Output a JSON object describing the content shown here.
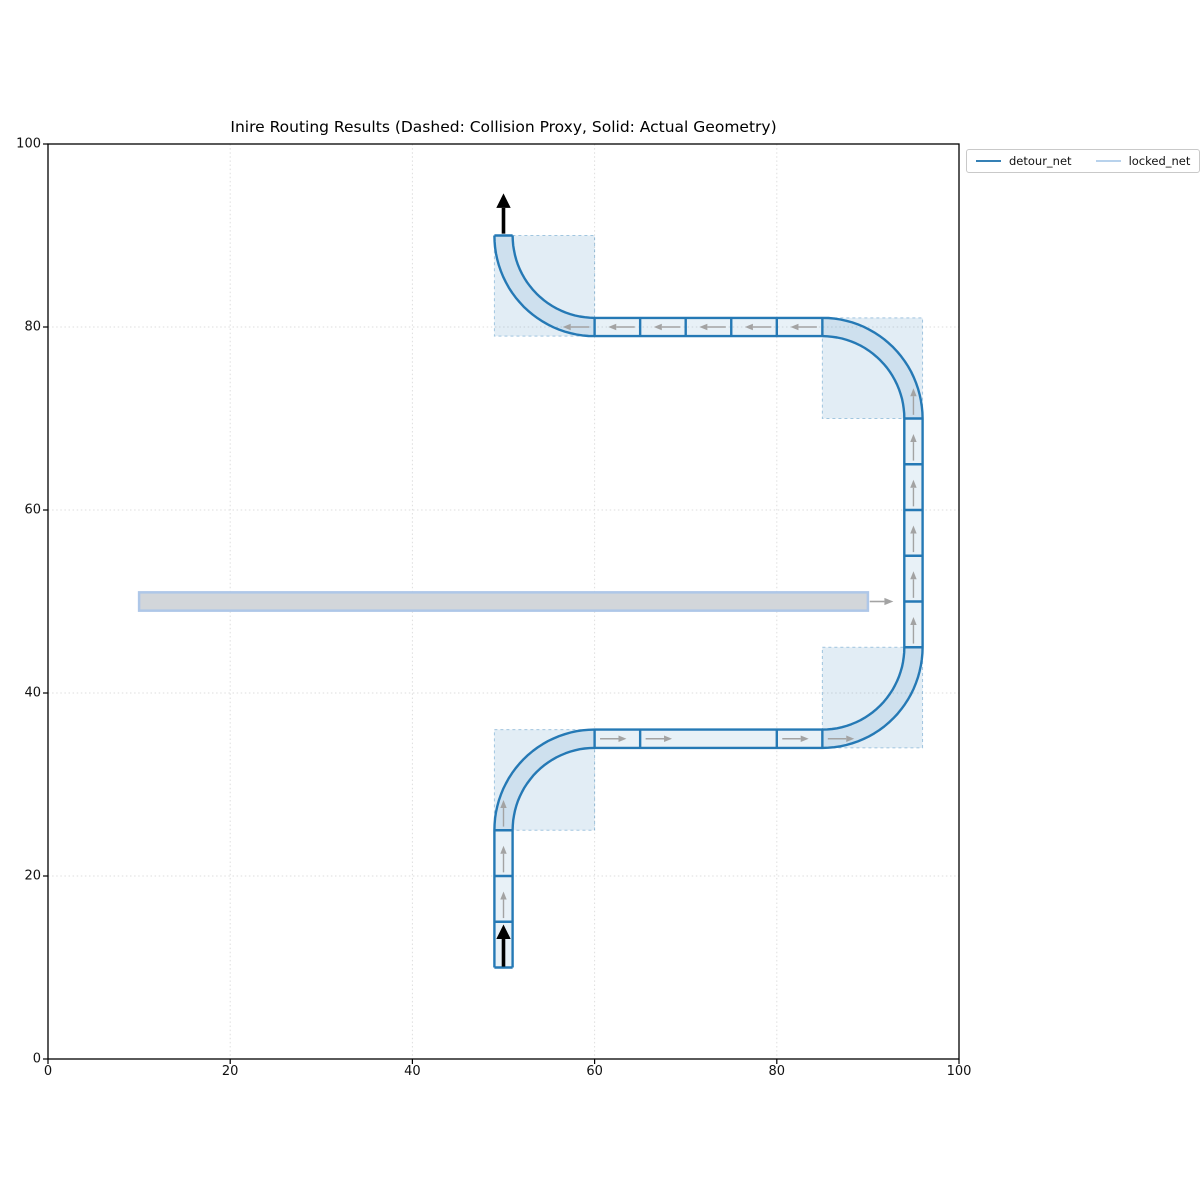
{
  "figure": {
    "title": "Inire Routing Results (Dashed: Collision Proxy, Solid: Actual Geometry)",
    "background": "#ffffff"
  },
  "chart_data": {
    "type": "line",
    "title": "Inire Routing Results (Dashed: Collision Proxy, Solid: Actual Geometry)",
    "xlabel": "",
    "ylabel": "",
    "xlim": [
      0,
      100
    ],
    "ylim": [
      0,
      100
    ],
    "xticks": [
      0,
      20,
      40,
      60,
      80,
      100
    ],
    "yticks": [
      0,
      20,
      40,
      60,
      80,
      100
    ],
    "grid": {
      "on": true,
      "style": "dotted",
      "color": "#dedede",
      "values": [
        20,
        40,
        60,
        80
      ]
    },
    "legend_position": "upper-right-outside",
    "colors": {
      "detour_stroke": "#2579b5",
      "detour_fill": "rgba(31,119,180,0.10)",
      "proxy_fill": "rgba(31,119,180,0.13)",
      "proxy_border": "rgba(31,119,180,0.38)",
      "locked_fill": "#d2d6da",
      "locked_border": "#aec7e8",
      "flow_arrow": "#a3a3a3",
      "terminal_arrow": "#000000",
      "spine": "#000000"
    },
    "series": [
      {
        "name": "detour_net",
        "legend_color": "#3580b5",
        "width_units": 2,
        "corner_radius": 10,
        "centerline_waypoints": [
          [
            50,
            10
          ],
          [
            50,
            35
          ],
          [
            95,
            35
          ],
          [
            95,
            80
          ],
          [
            50,
            80
          ],
          [
            50,
            90
          ]
        ],
        "edges": {
          "outer": [
            {
              "m": [
                49,
                10
              ]
            },
            {
              "l": [
                49,
                25
              ]
            },
            {
              "a": [
                60,
                25,
                11,
                180,
                90
              ]
            },
            {
              "l": [
                85,
                36
              ]
            },
            {
              "a": [
                85,
                45,
                9,
                270,
                360
              ]
            },
            {
              "l": [
                94,
                70
              ]
            },
            {
              "a": [
                85,
                70,
                9,
                0,
                90
              ]
            },
            {
              "l": [
                60,
                79
              ]
            },
            {
              "a": [
                60,
                90,
                11,
                270,
                180
              ]
            }
          ],
          "inner": [
            {
              "m": [
                51,
                10
              ]
            },
            {
              "l": [
                51,
                25
              ]
            },
            {
              "a": [
                60,
                25,
                9,
                180,
                90
              ]
            },
            {
              "l": [
                85,
                34
              ]
            },
            {
              "a": [
                85,
                45,
                11,
                270,
                360
              ]
            },
            {
              "l": [
                96,
                70
              ]
            },
            {
              "a": [
                85,
                70,
                11,
                0,
                90
              ]
            },
            {
              "l": [
                60,
                81
              ]
            },
            {
              "a": [
                60,
                90,
                9,
                270,
                180
              ]
            }
          ]
        },
        "end_caps": [
          [
            [
              49,
              10
            ],
            [
              51,
              10
            ]
          ],
          [
            [
              49,
              90
            ],
            [
              51,
              90
            ]
          ]
        ],
        "segment_ticks": [
          {
            "from": [
              49,
              15
            ],
            "to": [
              51,
              15
            ]
          },
          {
            "from": [
              49,
              20
            ],
            "to": [
              51,
              20
            ]
          },
          {
            "from": [
              49,
              25
            ],
            "to": [
              51,
              25
            ]
          },
          {
            "from": [
              60,
              34
            ],
            "to": [
              60,
              36
            ]
          },
          {
            "from": [
              65,
              34
            ],
            "to": [
              65,
              36
            ]
          },
          {
            "from": [
              80,
              34
            ],
            "to": [
              80,
              36
            ]
          },
          {
            "from": [
              85,
              34
            ],
            "to": [
              85,
              36
            ]
          },
          {
            "from": [
              94,
              45
            ],
            "to": [
              96,
              45
            ]
          },
          {
            "from": [
              94,
              50
            ],
            "to": [
              96,
              50
            ]
          },
          {
            "from": [
              94,
              55
            ],
            "to": [
              96,
              55
            ]
          },
          {
            "from": [
              94,
              60
            ],
            "to": [
              96,
              60
            ]
          },
          {
            "from": [
              94,
              65
            ],
            "to": [
              96,
              65
            ]
          },
          {
            "from": [
              94,
              70
            ],
            "to": [
              96,
              70
            ]
          },
          {
            "from": [
              60,
              79
            ],
            "to": [
              60,
              81
            ]
          },
          {
            "from": [
              65,
              79
            ],
            "to": [
              65,
              81
            ]
          },
          {
            "from": [
              70,
              79
            ],
            "to": [
              70,
              81
            ]
          },
          {
            "from": [
              75,
              79
            ],
            "to": [
              75,
              81
            ]
          },
          {
            "from": [
              80,
              79
            ],
            "to": [
              80,
              81
            ]
          },
          {
            "from": [
              85,
              79
            ],
            "to": [
              85,
              81
            ]
          }
        ],
        "flow_arrow_length": 2.9,
        "flow_arrows": [
          {
            "tail": [
              50,
              15.4
            ],
            "dir": [
              0,
              1
            ]
          },
          {
            "tail": [
              50,
              20.4
            ],
            "dir": [
              0,
              1
            ]
          },
          {
            "tail": [
              50,
              25.4
            ],
            "dir": [
              0,
              1
            ]
          },
          {
            "tail": [
              60.6,
              35
            ],
            "dir": [
              1,
              0
            ]
          },
          {
            "tail": [
              65.6,
              35
            ],
            "dir": [
              1,
              0
            ]
          },
          {
            "tail": [
              80.6,
              35
            ],
            "dir": [
              1,
              0
            ]
          },
          {
            "tail": [
              85.6,
              35
            ],
            "dir": [
              1,
              0
            ]
          },
          {
            "tail": [
              95,
              45.4
            ],
            "dir": [
              0,
              1
            ]
          },
          {
            "tail": [
              95,
              50.4
            ],
            "dir": [
              0,
              1
            ]
          },
          {
            "tail": [
              95,
              55.4
            ],
            "dir": [
              0,
              1
            ]
          },
          {
            "tail": [
              95,
              60.4
            ],
            "dir": [
              0,
              1
            ]
          },
          {
            "tail": [
              95,
              65.4
            ],
            "dir": [
              0,
              1
            ]
          },
          {
            "tail": [
              95,
              70.4
            ],
            "dir": [
              0,
              1
            ]
          },
          {
            "tail": [
              84.4,
              80
            ],
            "dir": [
              -1,
              0
            ]
          },
          {
            "tail": [
              79.4,
              80
            ],
            "dir": [
              -1,
              0
            ]
          },
          {
            "tail": [
              74.4,
              80
            ],
            "dir": [
              -1,
              0
            ]
          },
          {
            "tail": [
              69.4,
              80
            ],
            "dir": [
              -1,
              0
            ]
          },
          {
            "tail": [
              64.4,
              80
            ],
            "dir": [
              -1,
              0
            ]
          },
          {
            "tail": [
              59.4,
              80
            ],
            "dir": [
              -1,
              0
            ]
          }
        ],
        "terminal_arrows": [
          {
            "tail": [
              50,
              10.1
            ],
            "tip": [
              50,
              14.7
            ]
          },
          {
            "tail": [
              50,
              90.2
            ],
            "tip": [
              50,
              94.6
            ]
          }
        ],
        "collision_proxies": [
          {
            "x": 49,
            "y": 25,
            "w": 11,
            "h": 11
          },
          {
            "x": 85,
            "y": 34,
            "w": 11,
            "h": 11
          },
          {
            "x": 85,
            "y": 70,
            "w": 11,
            "h": 11
          },
          {
            "x": 49,
            "y": 79,
            "w": 11,
            "h": 11
          }
        ]
      },
      {
        "name": "locked_net",
        "legend_color": "#b8d2ec",
        "bar": {
          "x": 10,
          "y": 49,
          "w": 80,
          "h": 2
        },
        "arrow": {
          "tail": [
            90.2,
            50
          ],
          "tip": [
            92.8,
            50
          ]
        }
      }
    ]
  }
}
